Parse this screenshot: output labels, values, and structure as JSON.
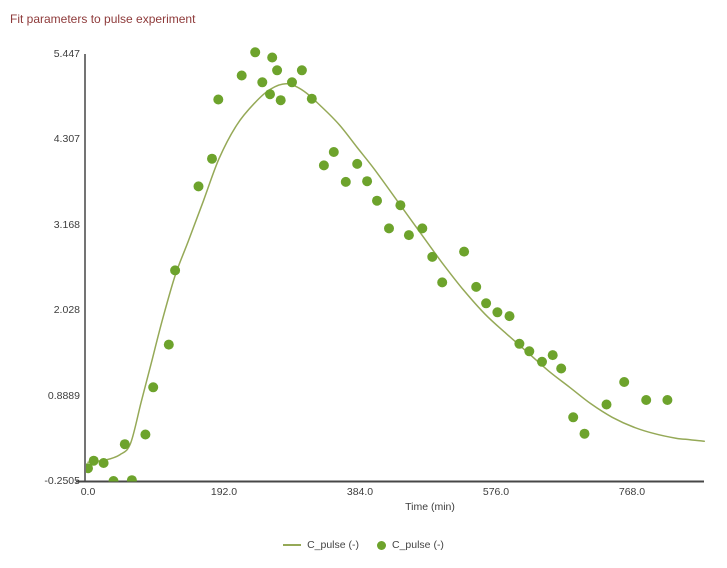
{
  "chart_data": {
    "type": "line+scatter",
    "title": "Fit parameters to pulse experiment",
    "xlabel": "Time (min)",
    "ylabel": "",
    "xlim": [
      0,
      880
    ],
    "ylim": [
      -0.2505,
      5.447
    ],
    "grid": false,
    "legend_position": "bottom-center",
    "xticks": {
      "values": [
        0,
        192,
        384,
        576,
        768
      ],
      "labels": [
        "0.0",
        "192.0",
        "384.0",
        "576.0",
        "768.0"
      ]
    },
    "yticks": {
      "values": [
        -0.2505,
        0.8889,
        2.028,
        3.168,
        4.307,
        5.447
      ],
      "labels": [
        "-0.2505",
        "0.8889",
        "2.028",
        "3.168",
        "4.307",
        "5.447"
      ]
    },
    "colors": {
      "title": "#8e3a3a",
      "axis": "#474747",
      "tick_label": "#3d3d3d",
      "curve": "#95a957",
      "dots": "#6da32c"
    },
    "series": [
      {
        "name": "C_pulse (-)",
        "style": "line",
        "color": "#95a957",
        "points": [
          [
            0,
            0.0
          ],
          [
            25,
            0.03
          ],
          [
            45,
            0.1
          ],
          [
            60,
            0.25
          ],
          [
            75,
            0.8
          ],
          [
            90,
            1.35
          ],
          [
            105,
            1.9
          ],
          [
            123,
            2.49
          ],
          [
            142,
            2.96
          ],
          [
            163,
            3.49
          ],
          [
            185,
            4.05
          ],
          [
            210,
            4.5
          ],
          [
            235,
            4.79
          ],
          [
            258,
            4.98
          ],
          [
            281,
            5.05
          ],
          [
            305,
            4.95
          ],
          [
            330,
            4.74
          ],
          [
            355,
            4.5
          ],
          [
            380,
            4.2
          ],
          [
            405,
            3.9
          ],
          [
            441,
            3.43
          ],
          [
            470,
            3.05
          ],
          [
            500,
            2.66
          ],
          [
            530,
            2.3
          ],
          [
            560,
            1.98
          ],
          [
            590,
            1.72
          ],
          [
            620,
            1.47
          ],
          [
            650,
            1.22
          ],
          [
            680,
            1.0
          ],
          [
            710,
            0.78
          ],
          [
            740,
            0.6
          ],
          [
            770,
            0.47
          ],
          [
            800,
            0.38
          ],
          [
            830,
            0.32
          ],
          [
            850,
            0.3
          ],
          [
            870,
            0.28
          ]
        ]
      },
      {
        "name": "C_pulse (-)",
        "style": "scatter",
        "color": "#6da32c",
        "marker_radius": 5,
        "points": [
          [
            0,
            -0.08
          ],
          [
            8,
            0.02
          ],
          [
            22,
            -0.01
          ],
          [
            36,
            -0.25
          ],
          [
            52,
            0.24
          ],
          [
            62,
            -0.24
          ],
          [
            81,
            0.37
          ],
          [
            92,
            1.0
          ],
          [
            114,
            1.57
          ],
          [
            123,
            2.56
          ],
          [
            156,
            3.68
          ],
          [
            175,
            4.05
          ],
          [
            184,
            4.84
          ],
          [
            217,
            5.16
          ],
          [
            236,
            5.47
          ],
          [
            246,
            5.07
          ],
          [
            257,
            4.91
          ],
          [
            260,
            5.4
          ],
          [
            267,
            5.23
          ],
          [
            272,
            4.83
          ],
          [
            288,
            5.07
          ],
          [
            302,
            5.23
          ],
          [
            316,
            4.85
          ],
          [
            333,
            3.96
          ],
          [
            347,
            4.14
          ],
          [
            364,
            3.74
          ],
          [
            380,
            3.98
          ],
          [
            394,
            3.75
          ],
          [
            408,
            3.49
          ],
          [
            425,
            3.12
          ],
          [
            441,
            3.43
          ],
          [
            453,
            3.03
          ],
          [
            472,
            3.12
          ],
          [
            486,
            2.74
          ],
          [
            500,
            2.4
          ],
          [
            531,
            2.81
          ],
          [
            548,
            2.34
          ],
          [
            562,
            2.12
          ],
          [
            578,
            2.0
          ],
          [
            595,
            1.95
          ],
          [
            609,
            1.58
          ],
          [
            623,
            1.48
          ],
          [
            641,
            1.34
          ],
          [
            656,
            1.43
          ],
          [
            668,
            1.25
          ],
          [
            685,
            0.6
          ],
          [
            701,
            0.38
          ],
          [
            732,
            0.77
          ],
          [
            757,
            1.07
          ],
          [
            788,
            0.83
          ],
          [
            818,
            0.83
          ]
        ]
      }
    ]
  }
}
